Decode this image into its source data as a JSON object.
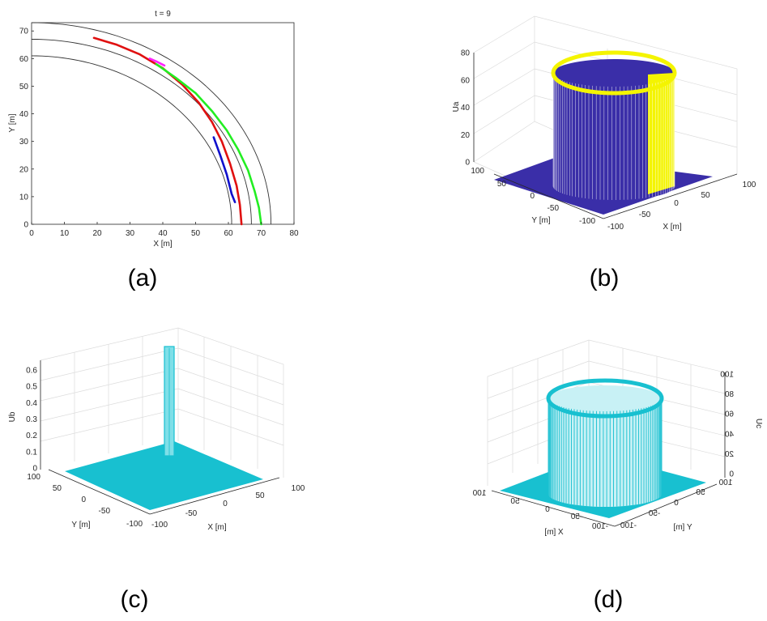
{
  "figure": {
    "panel_labels": [
      "(a)",
      "(b)",
      "(c)",
      "(d)"
    ]
  },
  "chart_data": [
    {
      "id": "a",
      "type": "line",
      "title": "t = 9",
      "xlabel": "X [m]",
      "ylabel": "Y [m]",
      "xlim": [
        0,
        80
      ],
      "ylim": [
        0,
        73
      ],
      "xticks": [
        0,
        10,
        20,
        30,
        40,
        50,
        60,
        70,
        80
      ],
      "yticks": [
        0,
        10,
        20,
        30,
        40,
        50,
        60,
        70
      ],
      "grid": false,
      "boundaries": [
        {
          "radius": 61,
          "color": "#333333"
        },
        {
          "radius": 67,
          "color": "#333333"
        },
        {
          "radius": 73,
          "color": "#333333"
        }
      ],
      "series": [
        {
          "color": "#e01010",
          "x": [
            19,
            26,
            33,
            40,
            46,
            51,
            55,
            58,
            60.5,
            62.5,
            63.5,
            64
          ],
          "y": [
            67.5,
            65,
            61.5,
            56.5,
            50.5,
            44,
            37,
            30,
            22,
            14,
            7,
            0
          ]
        },
        {
          "color": "#22ee22",
          "x": [
            38,
            44,
            50,
            55,
            59.5,
            63,
            66,
            68,
            69.3,
            70
          ],
          "y": [
            58,
            53,
            47.5,
            41,
            34,
            27,
            19.5,
            12,
            6,
            0
          ]
        },
        {
          "color": "#ff22ff",
          "x": [
            36,
            38,
            40.5
          ],
          "y": [
            60,
            59,
            57.5
          ]
        },
        {
          "color": "#1010cc",
          "x": [
            55.5,
            57.5,
            59.5,
            61,
            62
          ],
          "y": [
            31.5,
            25,
            18,
            11,
            8
          ]
        }
      ]
    },
    {
      "id": "b",
      "type": "surface",
      "zlabel": "Ua",
      "xlabel": "X [m]",
      "ylabel": "Y [m]",
      "zlim": [
        0,
        80
      ],
      "xlim": [
        -100,
        100
      ],
      "ylim": [
        -100,
        100
      ],
      "zticks": [
        0,
        20,
        40,
        60,
        80
      ],
      "xticks": [
        -100,
        -50,
        0,
        50,
        100
      ],
      "yticks": [
        -100,
        -50,
        0,
        50,
        100
      ],
      "cylinder": {
        "radius": 67,
        "height": 67
      },
      "colors": {
        "low": "#3a2ea8",
        "high": "#f4f400"
      }
    },
    {
      "id": "c",
      "type": "surface",
      "zlabel": "Ub",
      "xlabel": "X [m]",
      "ylabel": "Y [m]",
      "zlim": [
        0,
        0.65
      ],
      "xlim": [
        -100,
        100
      ],
      "ylim": [
        -100,
        100
      ],
      "zticks": [
        0,
        0.1,
        0.2,
        0.3,
        0.4,
        0.5,
        0.6
      ],
      "xticks": [
        -100,
        -50,
        0,
        50,
        100
      ],
      "yticks": [
        -100,
        -50,
        0,
        50,
        100
      ],
      "peak": {
        "value": 0.6
      },
      "colors": {
        "surface": "#18c0d0"
      }
    },
    {
      "id": "d",
      "type": "surface",
      "zlabel": "Uc",
      "xlabel": "X [m]",
      "ylabel": "Y [m]",
      "zlim": [
        0,
        100
      ],
      "xlim": [
        -100,
        100
      ],
      "ylim": [
        -100,
        100
      ],
      "zticks": [
        0,
        20,
        40,
        60,
        80,
        100
      ],
      "xticks": [
        -100,
        -50,
        0,
        50,
        100
      ],
      "yticks": [
        -100,
        -50,
        0,
        50,
        100
      ],
      "cylinder": {
        "radius": 67,
        "height": 67
      },
      "colors": {
        "surface": "#18c0d0"
      }
    }
  ]
}
